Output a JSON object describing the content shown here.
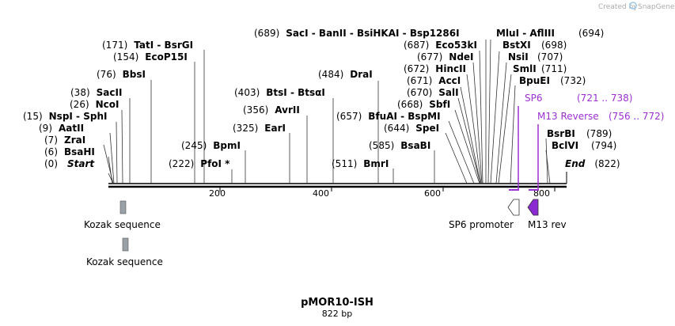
{
  "credit": {
    "prefix": "Created by",
    "brand": "SnapGene"
  },
  "title": "pMOR10-ISH",
  "length_label": "822 bp",
  "end_label": "End",
  "end_pos": "(822)",
  "ticks": [
    "200",
    "400",
    "600",
    "800"
  ],
  "sites": [
    {
      "pos": "(0)",
      "name": "Start",
      "italic": true
    },
    {
      "pos": "(6)",
      "name": "BsaHI"
    },
    {
      "pos": "(7)",
      "name": "ZraI"
    },
    {
      "pos": "(9)",
      "name": "AatII"
    },
    {
      "pos": "(15)",
      "name": "NspI  -  SphI"
    },
    {
      "pos": "(26)",
      "name": "NcoI"
    },
    {
      "pos": "(38)",
      "name": "SacII"
    },
    {
      "pos": "(76)",
      "name": "BbsI"
    },
    {
      "pos": "(154)",
      "name": "EcoP15I"
    },
    {
      "pos": "(171)",
      "name": "TatI  -  BsrGI"
    },
    {
      "pos": "(222)",
      "name": "PfoI *"
    },
    {
      "pos": "(245)",
      "name": "BpmI"
    },
    {
      "pos": "(325)",
      "name": "EarI"
    },
    {
      "pos": "(356)",
      "name": "AvrII"
    },
    {
      "pos": "(403)",
      "name": "BtsI  -  BtsαI"
    },
    {
      "pos": "(484)",
      "name": "DraI"
    },
    {
      "pos": "(511)",
      "name": "BmrI"
    },
    {
      "pos": "(585)",
      "name": "BsaBI"
    },
    {
      "pos": "(644)",
      "name": "SpeI"
    },
    {
      "pos": "(657)",
      "name": "BfuAI  -  BspMI"
    },
    {
      "pos": "(668)",
      "name": "SbfI"
    },
    {
      "pos": "(670)",
      "name": "SalI"
    },
    {
      "pos": "(671)",
      "name": "AccI"
    },
    {
      "pos": "(672)",
      "name": "HincII"
    },
    {
      "pos": "(677)",
      "name": "NdeI"
    },
    {
      "pos": "(687)",
      "name": "Eco53kI"
    },
    {
      "pos": "(689)",
      "name": "SacI  -  BanII  -  BsiHKAI  -  Bsp1286I"
    },
    {
      "pos": "(694)",
      "name": "MluI  -  AflIII"
    },
    {
      "pos": "(698)",
      "name": "BstXI"
    },
    {
      "pos": "(707)",
      "name": "NsiI"
    },
    {
      "pos": "(711)",
      "name": "SmlI"
    },
    {
      "pos": "(732)",
      "name": "BpuEI"
    },
    {
      "pos": "(789)",
      "name": "BsrBI"
    },
    {
      "pos": "(794)",
      "name": "BclVI"
    }
  ],
  "primers": [
    {
      "name": "SP6",
      "range": "(721 .. 738)"
    },
    {
      "name": "M13 Reverse",
      "range": "(756 .. 772)"
    }
  ],
  "features": [
    {
      "label": "Kozak sequence"
    },
    {
      "label": "Kozak sequence"
    },
    {
      "label": "SP6 promoter"
    },
    {
      "label": "M13 rev"
    }
  ],
  "colors": {
    "primer": "#9b30d0",
    "kozak": "#9aa0a8",
    "arrow_fill": "#8a2ad0"
  }
}
